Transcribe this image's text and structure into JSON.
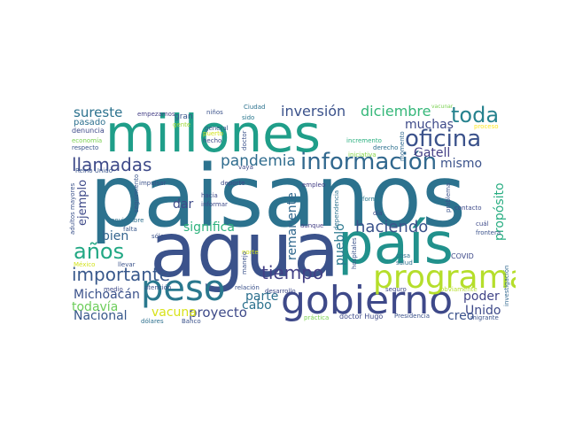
{
  "words": [
    {
      "text": "paisanos",
      "color": "#2c728e"
    },
    {
      "text": "millones",
      "color": "#1f9e89"
    },
    {
      "text": "agua",
      "color": "#3b528b"
    },
    {
      "text": "país",
      "color": "#21918c"
    },
    {
      "text": "gobierno",
      "color": "#3e4989"
    },
    {
      "text": "peso",
      "color": "#2a788e"
    },
    {
      "text": "programa",
      "color": "#b5de2b"
    },
    {
      "text": "información",
      "color": "#31688e"
    },
    {
      "text": "oficina",
      "color": "#3b528b"
    },
    {
      "text": "toda",
      "color": "#26828e"
    },
    {
      "text": "llamadas",
      "color": "#3e4a89"
    },
    {
      "text": "años",
      "color": "#22a884"
    },
    {
      "text": "importante",
      "color": "#38588c"
    },
    {
      "text": "tiempo",
      "color": "#423f85"
    },
    {
      "text": "pandemia",
      "color": "#2f6c8e"
    },
    {
      "text": "inversión",
      "color": "#3b528b"
    },
    {
      "text": "diciembre",
      "color": "#35b779"
    },
    {
      "text": "sureste",
      "color": "#2c728e"
    },
    {
      "text": "haciendo",
      "color": "#3b528b"
    },
    {
      "text": "muchas",
      "color": "#3e4a89"
    },
    {
      "text": "Gatell",
      "color": "#433e85"
    },
    {
      "text": "mismo",
      "color": "#3b528b"
    },
    {
      "text": "significa",
      "color": "#2db27d"
    },
    {
      "text": "propósito",
      "color": "#27ad81"
    },
    {
      "text": "remanente",
      "color": "#31688e"
    },
    {
      "text": "pueblo",
      "color": "#2a788e"
    },
    {
      "text": "proyecto",
      "color": "#3e4a89"
    },
    {
      "text": "parte",
      "color": "#2d708e"
    },
    {
      "text": "cabo",
      "color": "#2c728e"
    },
    {
      "text": "vacuna",
      "color": "#d8e219"
    },
    {
      "text": "todavía",
      "color": "#6ccd5a"
    },
    {
      "text": "Nacional",
      "color": "#38588c"
    },
    {
      "text": "Michoacán",
      "color": "#3b528b"
    },
    {
      "text": "poder",
      "color": "#414487"
    },
    {
      "text": "Unido",
      "color": "#3e4a89"
    },
    {
      "text": "creo",
      "color": "#3b528b"
    },
    {
      "text": "dar",
      "color": "#3e4a89"
    },
    {
      "text": "bien",
      "color": "#33638d"
    },
    {
      "text": "ejemplo",
      "color": "#3e4a89"
    },
    {
      "text": "pasado",
      "color": "#2d708e"
    },
    {
      "text": "denuncia",
      "color": "#3e4a89"
    },
    {
      "text": "economía",
      "color": "#7ad151"
    },
    {
      "text": "respecto",
      "color": "#39558c"
    },
    {
      "text": "empezamos",
      "color": "#433e85"
    },
    {
      "text": "gran",
      "color": "#39558c"
    },
    {
      "text": "gente",
      "color": "#a0da39"
    },
    {
      "text": "niños",
      "color": "#3b528b"
    },
    {
      "text": "Ciudad",
      "color": "#2c728e"
    },
    {
      "text": "sido",
      "color": "#2a788e"
    },
    {
      "text": "general",
      "color": "#38588c"
    },
    {
      "text": "puerto",
      "color": "#d2e21b"
    },
    {
      "text": "hecho",
      "color": "#3e4a89"
    },
    {
      "text": "doctor",
      "color": "#3b528b"
    },
    {
      "text": "vacunar",
      "color": "#7ad151"
    },
    {
      "text": "proceso",
      "color": "#fde725"
    },
    {
      "text": "incremento",
      "color": "#29af7f"
    },
    {
      "text": "momento",
      "color": "#31688e"
    },
    {
      "text": "derecho",
      "color": "#2d708e"
    },
    {
      "text": "iniciativa",
      "color": "#86d549"
    },
    {
      "text": "vaya",
      "color": "#3e4a89"
    },
    {
      "text": "Reino Unido",
      "color": "#39558c"
    },
    {
      "text": "impulsar",
      "color": "#3b528b"
    },
    {
      "text": "deporte",
      "color": "#3e4a89"
    },
    {
      "text": "empleo",
      "color": "#433e85"
    },
    {
      "text": "dependencia",
      "color": "#2c728e"
    },
    {
      "text": "forma",
      "color": "#2a788e"
    },
    {
      "text": "problema",
      "color": "#3b528b"
    },
    {
      "text": "contacto",
      "color": "#3e4a89"
    },
    {
      "text": "hacia",
      "color": "#3e4a89"
    },
    {
      "text": "informar",
      "color": "#3e4a89"
    },
    {
      "text": "seguimiento",
      "color": "#39558c"
    },
    {
      "text": "adultos mayores",
      "color": "#3b528b"
    },
    {
      "text": "noviembre",
      "color": "#2d708e"
    },
    {
      "text": "falta",
      "color": "#38588c"
    },
    {
      "text": "sólo",
      "color": "#3b528b"
    },
    {
      "text": "aunque",
      "color": "#433e85"
    },
    {
      "text": "día",
      "color": "#3e4a89"
    },
    {
      "text": "cuál",
      "color": "#3e4a89"
    },
    {
      "text": "frontera",
      "color": "#3b528b"
    },
    {
      "text": "México",
      "color": "#d2e21b"
    },
    {
      "text": "llevar",
      "color": "#3b528b"
    },
    {
      "text": "norte",
      "color": "#d2e21b"
    },
    {
      "text": "manejo",
      "color": "#3b528b"
    },
    {
      "text": "hospitales",
      "color": "#3b528b"
    },
    {
      "text": "cosa",
      "color": "#2d708e"
    },
    {
      "text": "salud",
      "color": "#2d708e"
    },
    {
      "text": "COVID",
      "color": "#3e4a89"
    },
    {
      "text": "investigación",
      "color": "#31688e"
    },
    {
      "text": "medio",
      "color": "#3e4a89"
    },
    {
      "text": "atención",
      "color": "#3b528b"
    },
    {
      "text": "relación",
      "color": "#3b528b"
    },
    {
      "text": "desarrollo",
      "color": "#3e4a89"
    },
    {
      "text": "seguro",
      "color": "#3e4a89"
    },
    {
      "text": "obviamente",
      "color": "#b5de2b"
    },
    {
      "text": "dólares",
      "color": "#2d708e"
    },
    {
      "text": "Banco",
      "color": "#3b528b"
    },
    {
      "text": "práctica",
      "color": "#7ad151"
    },
    {
      "text": "doctor Hugo",
      "color": "#3e4a89"
    },
    {
      "text": "Presidencia",
      "color": "#3b528b"
    },
    {
      "text": "migrante",
      "color": "#3b528b"
    }
  ]
}
